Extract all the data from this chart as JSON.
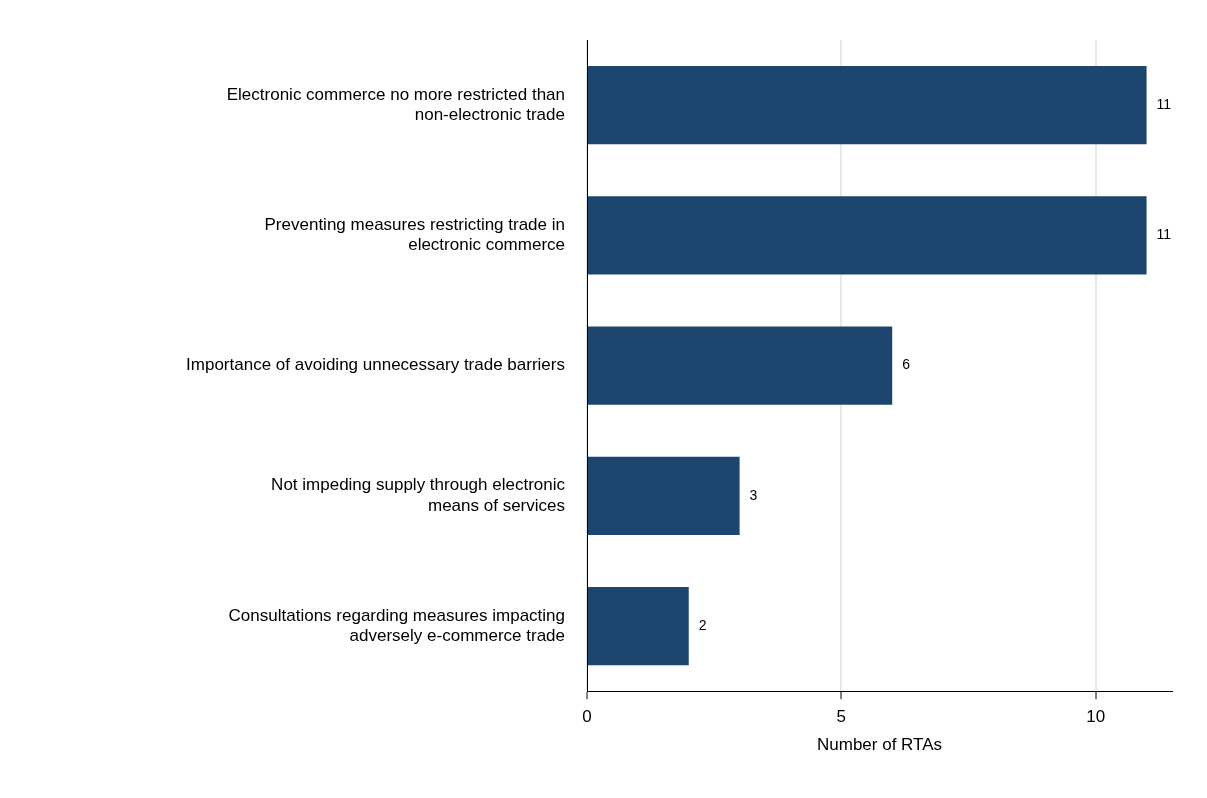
{
  "chart_data": {
    "type": "bar",
    "orientation": "horizontal",
    "categories": [
      "Electronic commerce no more restricted than\nnon-electronic trade",
      "Preventing measures restricting trade in\nelectronic commerce",
      "Importance of avoiding unnecessary trade barriers",
      "Not impeding supply through electronic\nmeans of services",
      "Consultations regarding measures impacting\nadversely e-commerce trade"
    ],
    "values": [
      11,
      11,
      6,
      3,
      2
    ],
    "color": "#1c466e",
    "xlabel": "Number of RTAs",
    "xlim": [
      0,
      11.5
    ],
    "xticks": [
      0,
      5,
      10
    ],
    "grid": "x",
    "data_labels": true,
    "legend": false
  }
}
